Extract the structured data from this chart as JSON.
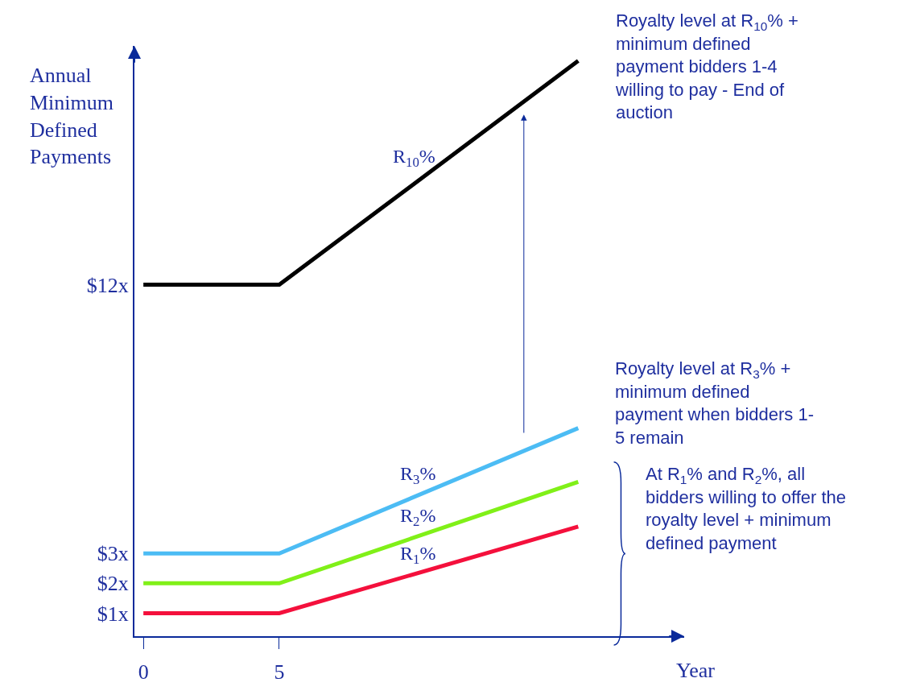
{
  "chart_data": {
    "type": "line",
    "xlabel": "Year",
    "ylabel": "Annual Minimum Defined Payments",
    "xlim": [
      -0.33,
      19.9
    ],
    "ylim": [
      0.23,
      20
    ],
    "xticks": [
      0,
      5
    ],
    "yticks": [
      {
        "value": 1,
        "label": "$1x"
      },
      {
        "value": 2,
        "label": "$2x"
      },
      {
        "value": 3,
        "label": "$3x"
      },
      {
        "value": 12,
        "label": "$12x"
      }
    ],
    "series": [
      {
        "name": "R$_{10}$%",
        "color": "#000000",
        "x": [
          0,
          5,
          16
        ],
        "values": [
          12,
          12,
          19.5
        ]
      },
      {
        "name": "R$_{3}$%",
        "color": "#4cbcf4",
        "x": [
          0,
          5,
          16
        ],
        "values": [
          3,
          3,
          7.2
        ]
      },
      {
        "name": "R$_{2}$%",
        "color": "#80f018",
        "x": [
          0,
          5,
          16
        ],
        "values": [
          2,
          2,
          5.4
        ]
      },
      {
        "name": "R$_{1}$%",
        "color": "#f4103c",
        "x": [
          0,
          5,
          16
        ],
        "values": [
          1,
          1,
          3.9
        ]
      }
    ],
    "annotations": [
      "Royalty level at R$_{10}$% +\nminimum defined\npayment bidders 1-4\nwilling to pay - End of\nauction",
      "Royalty level at R$_{3}$% +\nminimum defined\npayment when bidders 1-\n5 remain",
      "At R$_{1}$% and R$_{2}$%, all\nbidders willing to offer the\nroyalty level + minimum\ndefined payment"
    ],
    "legend": false,
    "marker": "none",
    "line_style": "solid"
  }
}
